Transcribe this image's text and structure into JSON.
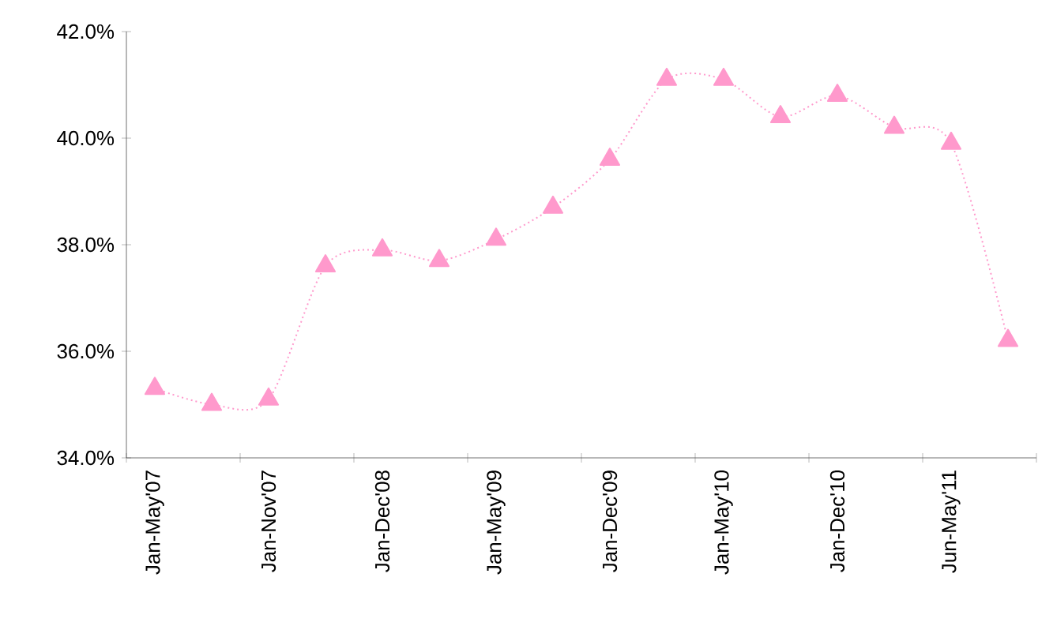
{
  "chart_data": {
    "type": "line",
    "categories": [
      "Jan-May'07",
      null,
      "Jan-Nov'07",
      null,
      "Jan-Dec'08",
      null,
      "Jan-May'09",
      null,
      "Jan-Dec'09",
      null,
      "Jan-May'10",
      null,
      "Jan-Dec'10",
      null,
      "Jun-May'11",
      null
    ],
    "series": [
      {
        "color": "#ff99cc",
        "values": [
          35.3,
          35.0,
          35.1,
          37.6,
          37.9,
          37.7,
          38.1,
          38.7,
          39.6,
          41.1,
          41.1,
          40.4,
          40.8,
          40.2,
          39.9,
          36.2
        ]
      }
    ],
    "ylim": [
      34,
      42
    ],
    "yticks": [
      {
        "value": 34,
        "label": "34.0%"
      },
      {
        "value": 36,
        "label": "36.0%"
      },
      {
        "value": 38,
        "label": "38.0%"
      },
      {
        "value": 40,
        "label": "40.0%"
      },
      {
        "value": 42,
        "label": "42.0%"
      }
    ],
    "marker": "triangle",
    "line_style": "dotted"
  }
}
